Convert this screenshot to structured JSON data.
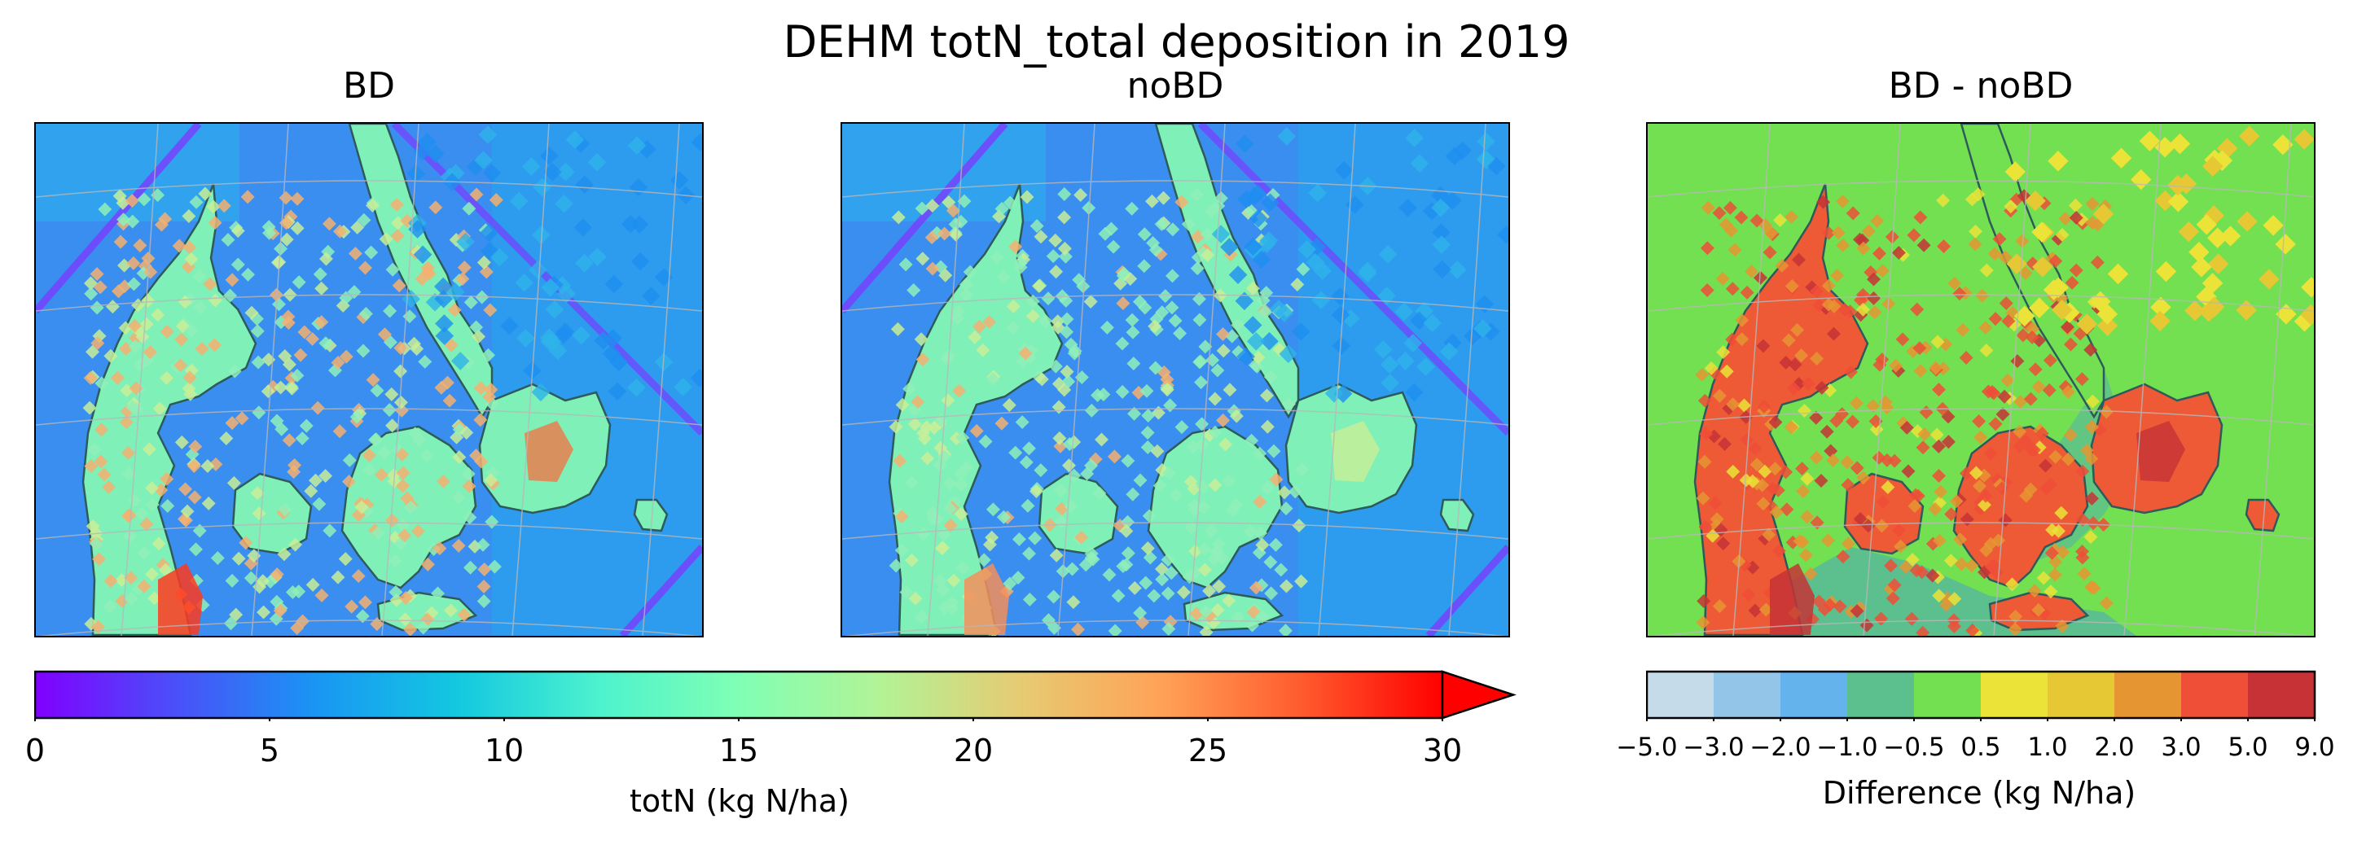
{
  "figure": {
    "suptitle": "DEHM totN_total deposition in 2019"
  },
  "panels": [
    {
      "id": "bd",
      "title": "BD",
      "kind": "concentration"
    },
    {
      "id": "nobd",
      "title": "noBD",
      "kind": "concentration"
    },
    {
      "id": "diff",
      "title": "BD - noBD",
      "kind": "difference"
    }
  ],
  "colorbars": {
    "conc": {
      "label": "totN (kg N/ha)",
      "ticks": [
        "0",
        "5",
        "10",
        "15",
        "20",
        "25",
        "30"
      ],
      "min": 0,
      "max": 30,
      "extend": "max",
      "colormap": "rainbow",
      "colors": [
        "#8000ff",
        "#4a50f9",
        "#1996f3",
        "#13c8e0",
        "#4cf2ce",
        "#80ffb4",
        "#b2f396",
        "#e6cb73",
        "#ffa256",
        "#ff5b2e",
        "#ff0000"
      ]
    },
    "diff": {
      "label": "Difference (kg N/ha)",
      "ticks": [
        "−5.0",
        "−3.0",
        "−2.0",
        "−1.0",
        "−0.5",
        "0.5",
        "1.0",
        "2.0",
        "3.0",
        "5.0",
        "9.0"
      ],
      "bins": [
        "#c6dbea",
        "#93c5e8",
        "#65b3ed",
        "#5bbf8e",
        "#73e052",
        "#ebe337",
        "#e5c833",
        "#e69533",
        "#ef4e37",
        "#c63236"
      ]
    }
  },
  "map_colors": {
    "sea_low": "#3e7cf0",
    "sea_mid": "#2ca9ee",
    "land_mid": "#7ff0b8",
    "land_high": "#f0a66a",
    "hotspot": "#ff3a1e",
    "diff_bg": "#73e052",
    "coast": "#2e5a5a",
    "grid": "#b8b8b8",
    "ship_lane": "#7a3cff"
  }
}
